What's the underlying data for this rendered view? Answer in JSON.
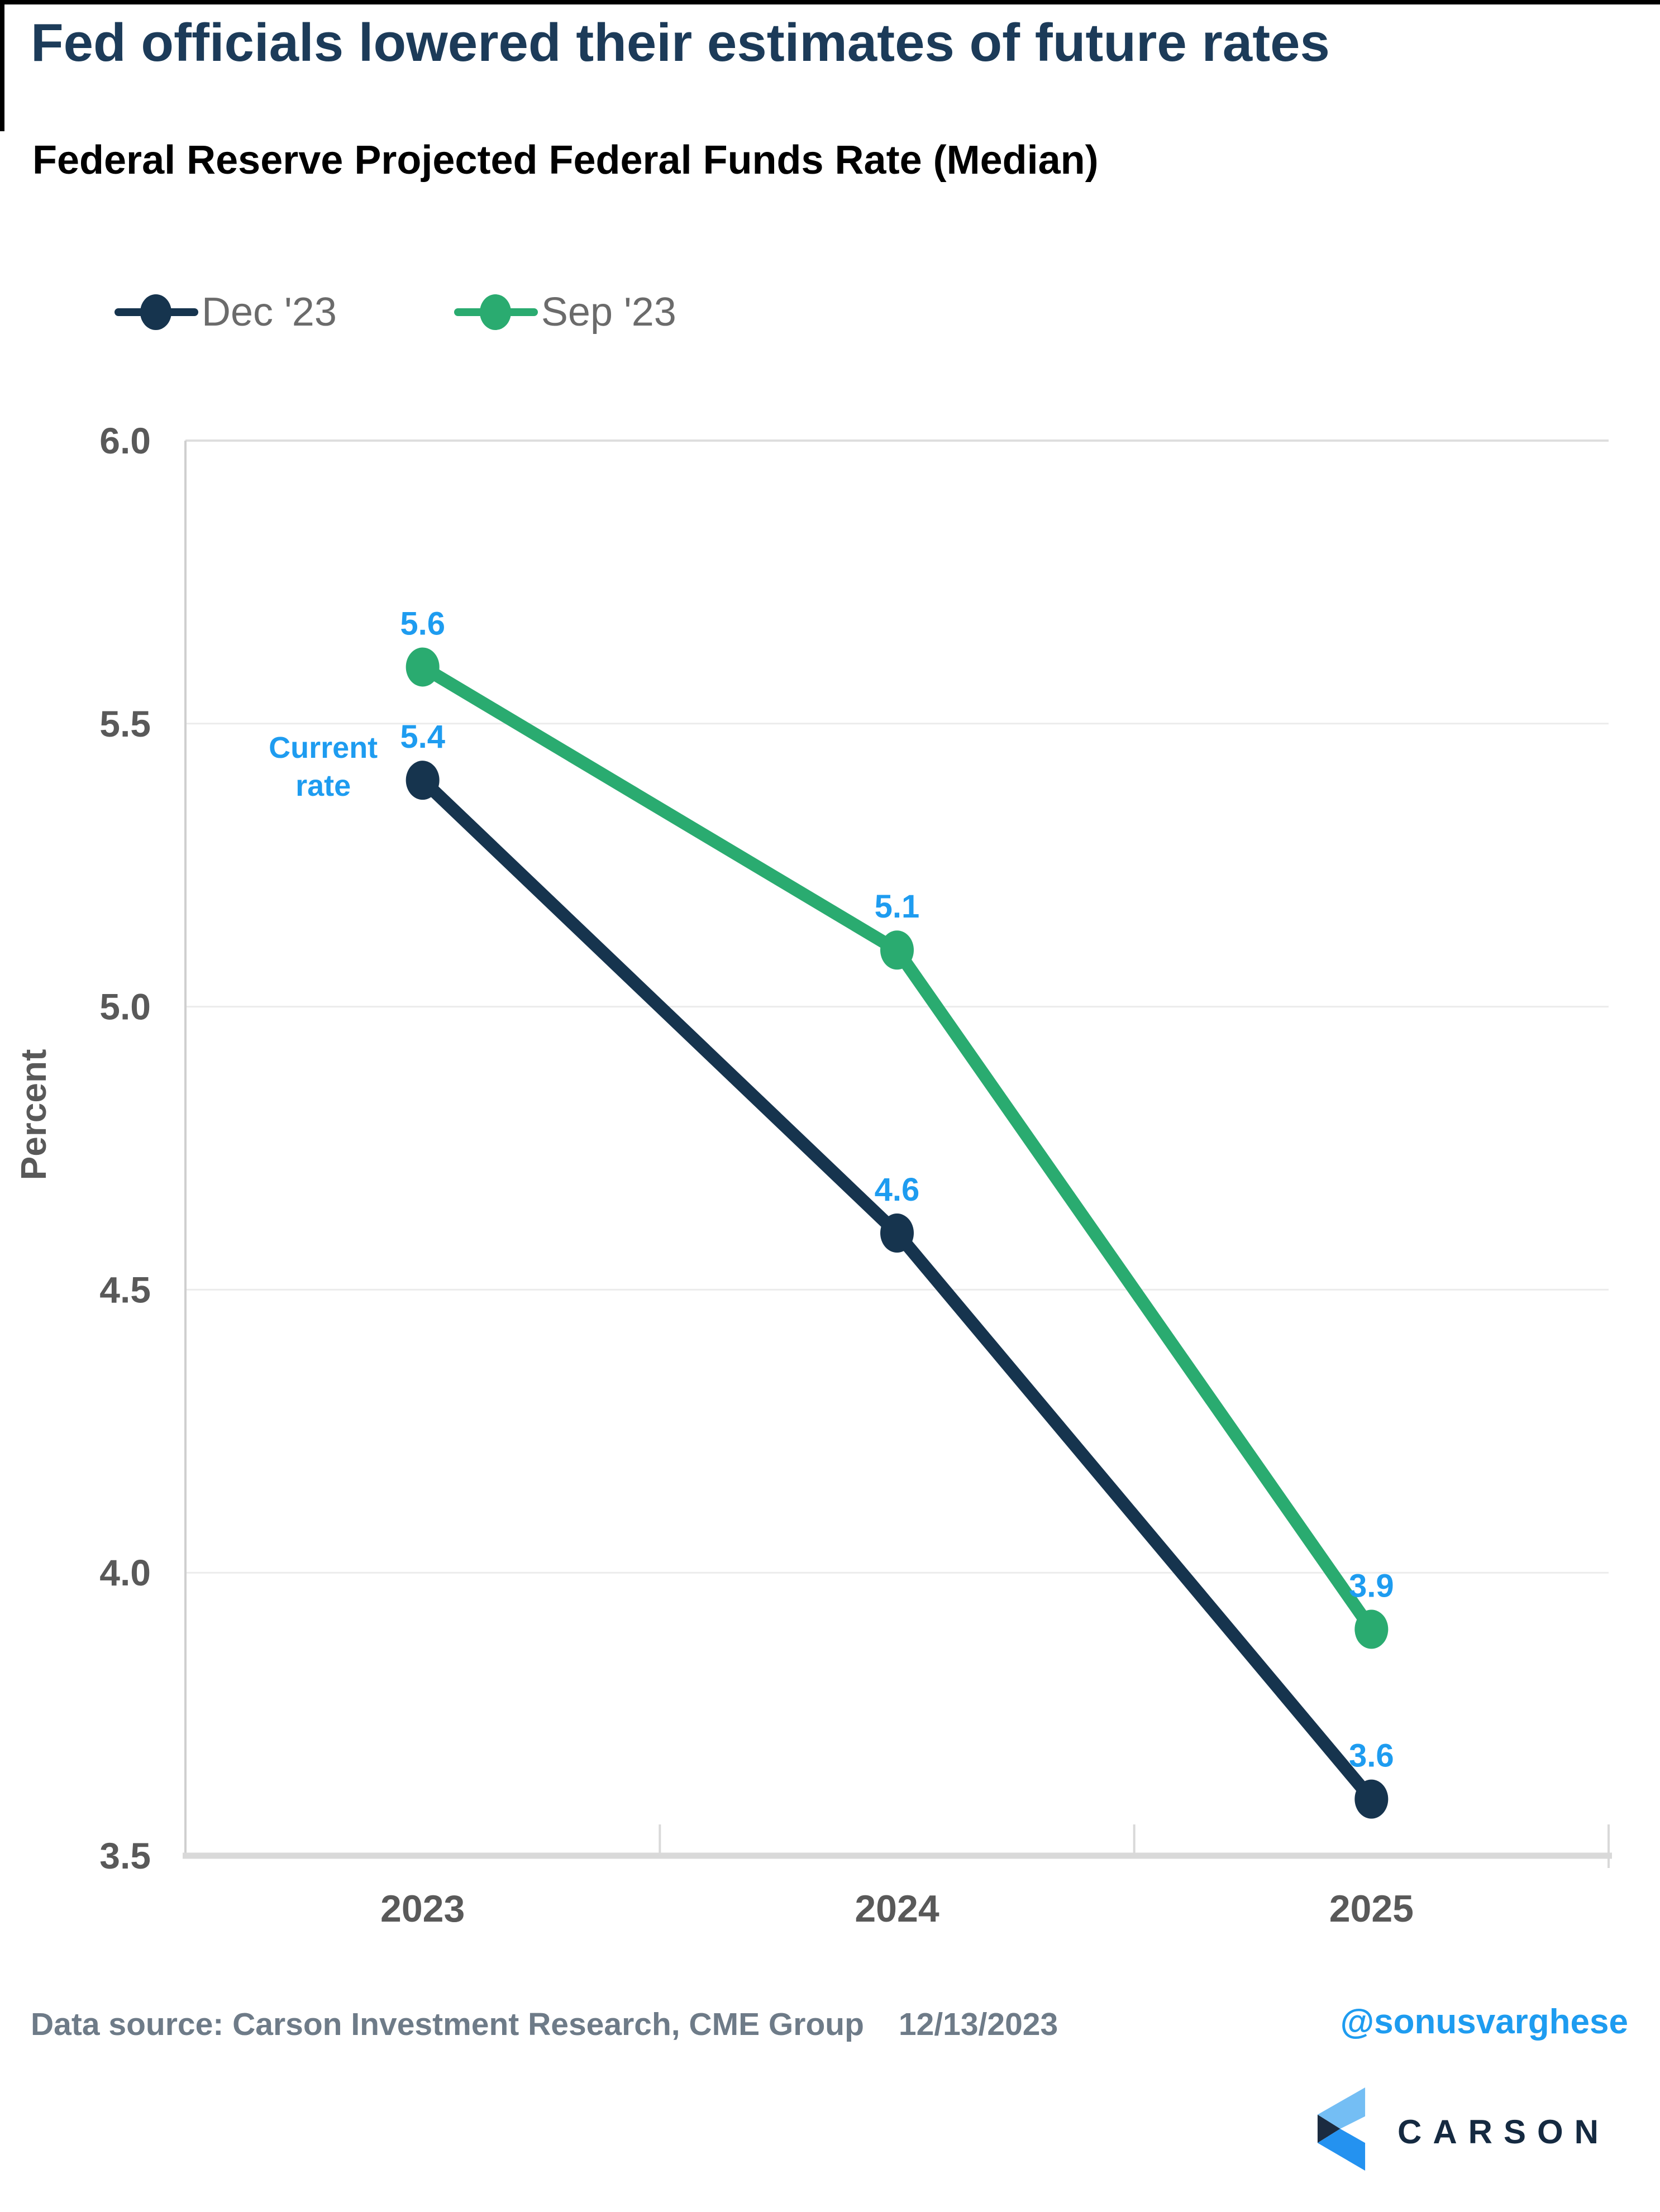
{
  "page": {
    "title": "Fed officials lowered their estimates of future rates",
    "subtitle": "Federal Reserve Projected Federal Funds Rate (Median)"
  },
  "legend": {
    "items": [
      {
        "label": "Dec '23",
        "color": "#16344e"
      },
      {
        "label": "Sep '23",
        "color": "#2aab70"
      }
    ]
  },
  "chart_data": {
    "type": "line",
    "categories": [
      "2023",
      "2024",
      "2025"
    ],
    "series": [
      {
        "name": "Dec '23",
        "color": "#16344e",
        "values": [
          5.4,
          4.6,
          3.6
        ],
        "labels": [
          "5.4",
          "4.6",
          "3.6"
        ]
      },
      {
        "name": "Sep '23",
        "color": "#2aab70",
        "values": [
          5.6,
          5.1,
          3.9
        ],
        "labels": [
          "5.6",
          "5.1",
          "3.9"
        ]
      }
    ],
    "title": "Federal Reserve Projected Federal Funds Rate (Median)",
    "xlabel": "",
    "ylabel": "Percent",
    "ylim": [
      3.5,
      6.0
    ],
    "yticks": [
      "6.0",
      "5.5",
      "5.0",
      "4.5",
      "4.0",
      "3.5"
    ],
    "grid": "horizontal",
    "legend_position": "top-left",
    "data_label_color": "#1e9cf0",
    "annotation": {
      "line1": "Current",
      "line2": "rate",
      "series": "Dec '23",
      "category": "2023",
      "color": "#1e9cf0"
    },
    "axis_tick_color": "#595959",
    "grid_color": "#ececec",
    "axis_line_color": "#d9d9d9"
  },
  "footer": {
    "source": "Data source: Carson Investment Research, CME Group",
    "date": "12/13/2023",
    "handle": "@sonusvarghese",
    "handle_color": "#1e9cf0",
    "logo": {
      "text": "CARSON",
      "text_color": "#152a41",
      "colors": {
        "light": "#74bef4",
        "mid": "#2492f0",
        "dark": "#1b2b40"
      }
    }
  }
}
